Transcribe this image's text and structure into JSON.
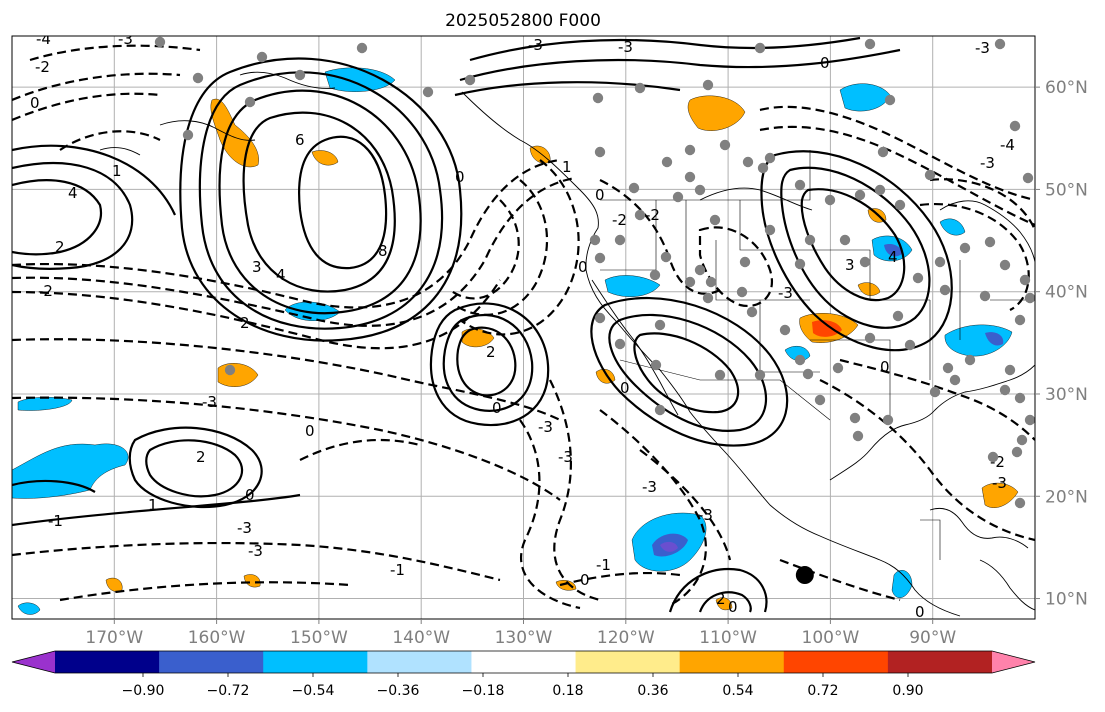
{
  "title": "2025052800 F000",
  "map": {
    "lon_range": [
      -180,
      -80
    ],
    "lat_range": [
      8,
      65
    ],
    "lon_ticks": [
      {
        "lon": -170,
        "label": "170°W"
      },
      {
        "lon": -160,
        "label": "160°W"
      },
      {
        "lon": -150,
        "label": "150°W"
      },
      {
        "lon": -140,
        "label": "140°W"
      },
      {
        "lon": -130,
        "label": "130°W"
      },
      {
        "lon": -120,
        "label": "120°W"
      },
      {
        "lon": -110,
        "label": "110°W"
      },
      {
        "lon": -100,
        "label": "100°W"
      },
      {
        "lon": -90,
        "label": "90°W"
      }
    ],
    "lat_ticks": [
      {
        "lat": 60,
        "label": "60°N"
      },
      {
        "lat": 50,
        "label": "50°N"
      },
      {
        "lat": 40,
        "label": "40°N"
      },
      {
        "lat": 30,
        "label": "30°N"
      },
      {
        "lat": 20,
        "label": "20°N"
      },
      {
        "lat": 10,
        "label": "10°N"
      }
    ],
    "grid": true,
    "contour_label_values": [
      "-4",
      "-3",
      "-2",
      "-1",
      "0",
      "1",
      "2",
      "3",
      "4",
      "6",
      "8"
    ],
    "marker": {
      "lon": -102.5,
      "lat": 12.3,
      "color": "#000000"
    },
    "station_dot_color": "#808080"
  },
  "colorbar": {
    "orientation": "horizontal",
    "extend": "both",
    "tick_labels": [
      "−0.90",
      "−0.72",
      "−0.54",
      "−0.36",
      "−0.18",
      "0.18",
      "0.36",
      "0.54",
      "0.72",
      "0.90"
    ],
    "colors": [
      "#9a32cd",
      "#00008b",
      "#3a5fcd",
      "#00bfff",
      "#b0e2ff",
      "#ffffff",
      "#ffec8b",
      "#ffa500",
      "#ff4500",
      "#b22222",
      "#ff82ab"
    ]
  }
}
